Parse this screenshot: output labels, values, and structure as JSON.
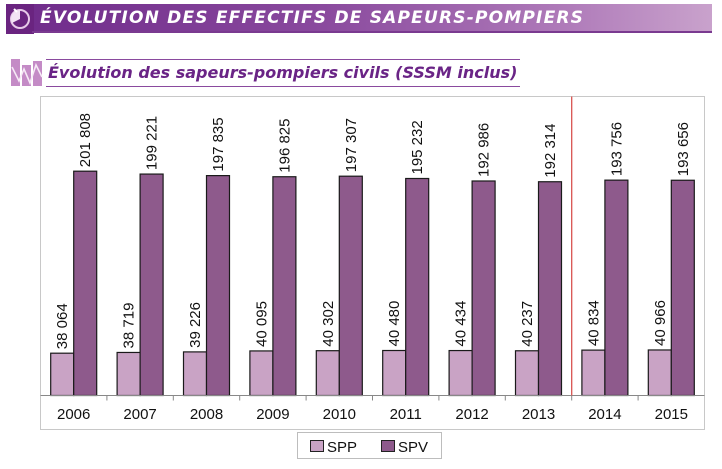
{
  "header": {
    "title": "ÉVOLUTION DES EFFECTIFS DE SAPEURS-POMPIERS",
    "icon": "pie-chart-icon"
  },
  "section": {
    "title": "Évolution des sapeurs-pompiers civils (SSSM  inclus)",
    "icon": "line-chart-icon"
  },
  "colors": {
    "banner": "#7a3a90",
    "spp": "#c9a3c5",
    "spv": "#8e5a8c",
    "separator": "#d9534f",
    "title_text": "#6a2486"
  },
  "chart_data": {
    "type": "bar",
    "title": "Évolution des sapeurs-pompiers civils (SSSM  inclus)",
    "xlabel": "",
    "ylabel": "",
    "categories": [
      "2006",
      "2007",
      "2008",
      "2009",
      "2010",
      "2011",
      "2012",
      "2013",
      "2014",
      "2015"
    ],
    "series": [
      {
        "name": "SPP",
        "values": [
          38064,
          38719,
          39226,
          40095,
          40302,
          40480,
          40434,
          40237,
          40834,
          40966
        ],
        "labels": [
          "38 064",
          "38 719",
          "39 226",
          "40 095",
          "40 302",
          "40 480",
          "40 434",
          "40 237",
          "40 834",
          "40 966"
        ]
      },
      {
        "name": "SPV",
        "values": [
          201808,
          199221,
          197835,
          196825,
          197307,
          195232,
          192986,
          192314,
          193756,
          193656
        ],
        "labels": [
          "201 808",
          "199 221",
          "197 835",
          "196 825",
          "197 307",
          "195 232",
          "192 986",
          "192 314",
          "193 756",
          "193 656"
        ]
      }
    ],
    "ylim": [
      0,
      269000
    ],
    "grid": false,
    "separator_between": [
      "2013",
      "2014"
    ],
    "legend": {
      "placement": "bottom",
      "entries": [
        "SPP",
        "SPV"
      ]
    }
  }
}
